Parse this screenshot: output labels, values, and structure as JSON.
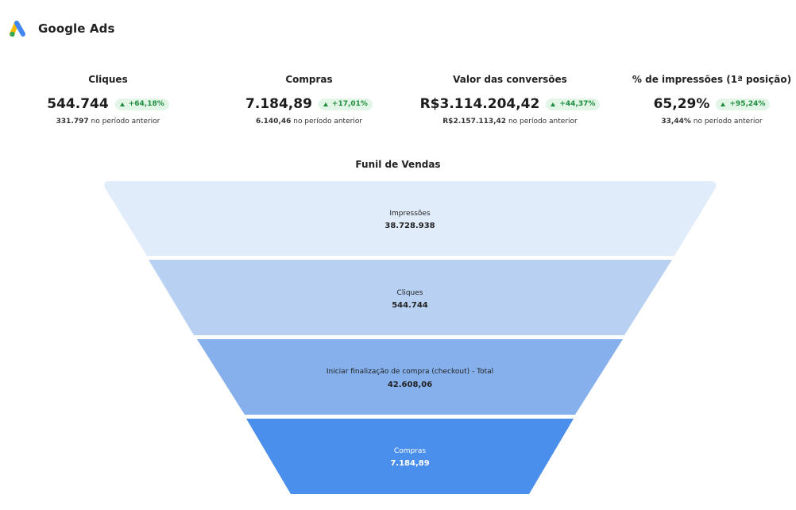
{
  "header": {
    "brand": "Google Ads",
    "logo_icon": "google-ads-logo"
  },
  "kpis": [
    {
      "title": "Cliques",
      "value": "544.744",
      "change": "+64,18%",
      "previous_value": "331.797",
      "previous_suffix": "no período anterior"
    },
    {
      "title": "Compras",
      "value": "7.184,89",
      "change": "+17,01%",
      "previous_value": "6.140,46",
      "previous_suffix": "no período anterior"
    },
    {
      "title": "Valor das conversões",
      "value": "R$3.114.204,42",
      "change": "+44,37%",
      "previous_value": "R$2.157.113,42",
      "previous_suffix": "no período anterior"
    },
    {
      "title": "% de impressões (1ª posição)",
      "value": "65,29%",
      "change": "+95,24%",
      "previous_value": "33,44%",
      "previous_suffix": "no período anterior"
    }
  ],
  "colors": {
    "badge_bg": "#e2f5e7",
    "badge_text": "#1e8e3e",
    "stage_colors": [
      "#e1ecfb",
      "#b8d1f2",
      "#85b0ec",
      "#4a8feb"
    ]
  },
  "funnel": {
    "title": "Funil de Vendas",
    "stages": [
      {
        "label": "Impressões",
        "value": "38.728.938"
      },
      {
        "label": "Cliques",
        "value": "544.744"
      },
      {
        "label": "Iniciar finalização de compra (checkout) - Total",
        "value": "42.608,06"
      },
      {
        "label": "Compras",
        "value": "7.184,89"
      }
    ]
  }
}
